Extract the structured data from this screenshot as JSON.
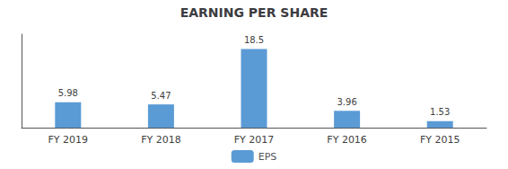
{
  "chart_data": {
    "type": "bar",
    "title": "EARNING PER SHARE",
    "categories": [
      "FY 2019",
      "FY 2018",
      "FY 2017",
      "FY 2016",
      "FY 2015"
    ],
    "series": [
      {
        "name": "EPS",
        "color": "#5B9BD5",
        "values": [
          5.98,
          5.47,
          18.5,
          3.96,
          1.53
        ]
      }
    ],
    "ylim": [
      0,
      22
    ],
    "grid": false,
    "legend": "bottom",
    "data_labels": true,
    "tick_labels": "x"
  }
}
